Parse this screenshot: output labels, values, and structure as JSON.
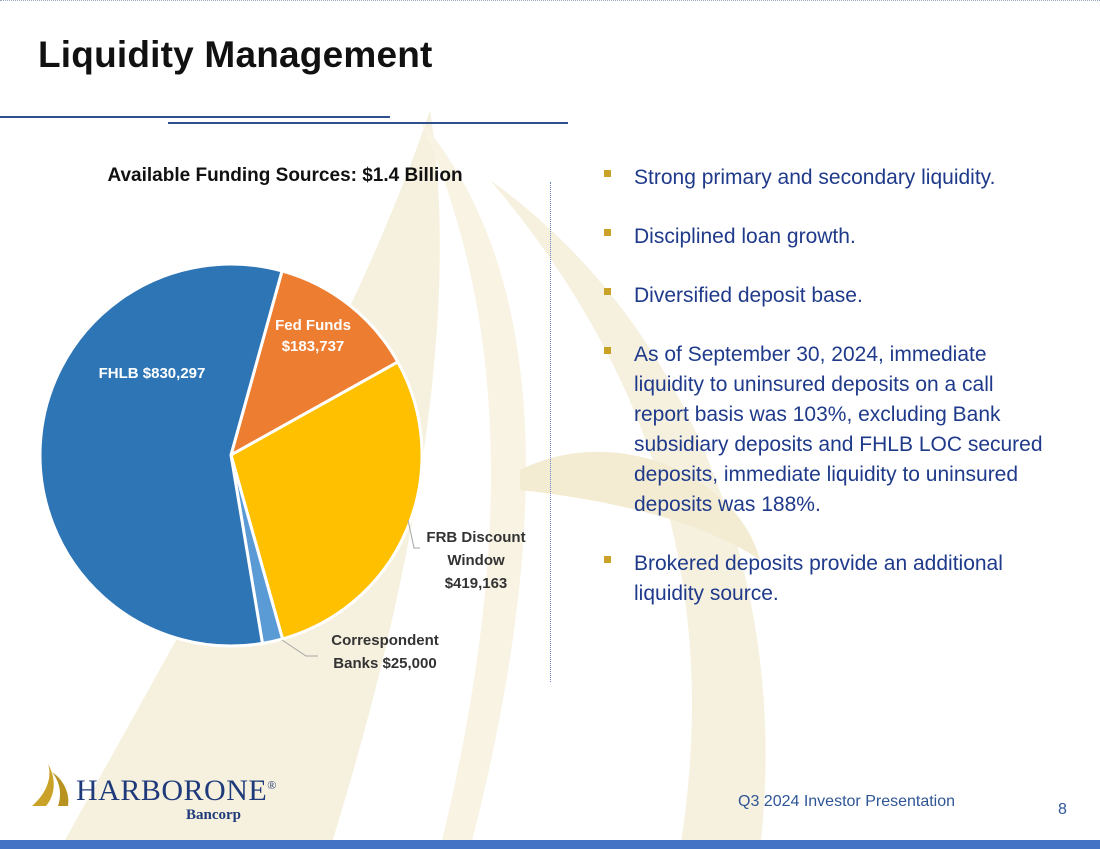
{
  "slide": {
    "title": "Liquidity Management",
    "footer": "Q3 2024 Investor Presentation",
    "page_number": "8"
  },
  "logo": {
    "word": "HARBORONE",
    "registered": "®",
    "subtitle": "Bancorp"
  },
  "bullets": [
    "Strong primary and secondary liquidity.",
    "Disciplined loan growth.",
    "Diversified deposit base.",
    "As of September 30, 2024, immediate liquidity to uninsured deposits on a call report basis was 103%, excluding Bank subsidiary deposits and FHLB LOC secured deposits, immediate liquidity to uninsured deposits was 188%.",
    "Brokered deposits provide an additional liquidity source."
  ],
  "colors": {
    "title": "#111111",
    "bullet_text": "#1f3a8a",
    "bullet_marker": "#c9a227",
    "bottom_bar": "#4472c4",
    "background_art": "#f6f1df"
  },
  "chart_data": {
    "type": "pie",
    "title": "Available Funding Sources:  $1.4 Billion",
    "slices": [
      {
        "label_lines": [
          "Fed Funds",
          "$183,737"
        ],
        "value": 183737,
        "color": "#ed7d31"
      },
      {
        "label_lines": [
          "FRB Discount",
          "Window",
          "$419,163"
        ],
        "value": 419163,
        "color": "#ffc000"
      },
      {
        "label_lines": [
          "Correspondent",
          "Banks $25,000"
        ],
        "value": 25000,
        "color": "#5b9bd5"
      },
      {
        "label_lines": [
          "FHLB $830,297"
        ],
        "value": 830297,
        "color": "#2e75b6"
      }
    ]
  }
}
